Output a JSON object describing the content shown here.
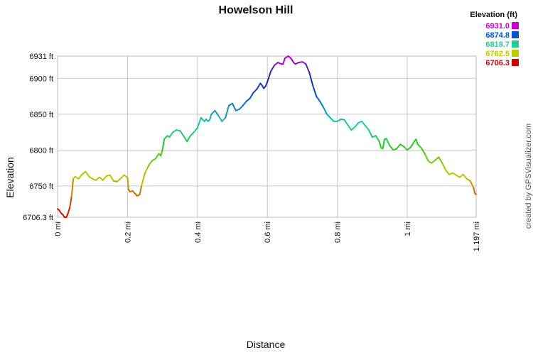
{
  "chart_data": {
    "type": "line",
    "title": "Howelson Hill",
    "xlabel": "Distance",
    "ylabel": "Elevation",
    "xlim": [
      0,
      1.197
    ],
    "ylim": [
      6706.3,
      6931
    ],
    "x_ticks": [
      {
        "v": 0,
        "label": "0 mi"
      },
      {
        "v": 0.2,
        "label": "0.2 mi"
      },
      {
        "v": 0.4,
        "label": "0.4 mi"
      },
      {
        "v": 0.6,
        "label": "0.6 mi"
      },
      {
        "v": 0.8,
        "label": "0.8 mi"
      },
      {
        "v": 1,
        "label": "1 mi"
      },
      {
        "v": 1.197,
        "label": "1.197 mi"
      }
    ],
    "y_ticks": [
      {
        "v": 6706.3,
        "label": "6706.3 ft"
      },
      {
        "v": 6750,
        "label": "6750 ft"
      },
      {
        "v": 6800,
        "label": "6800 ft"
      },
      {
        "v": 6850,
        "label": "6850 ft"
      },
      {
        "v": 6900,
        "label": "6900 ft"
      },
      {
        "v": 6931,
        "label": "6931 ft"
      }
    ],
    "grid": true,
    "legend_placement": "top-right",
    "legend_title": "Elevation (ft)",
    "legend": [
      {
        "label": "6931.0",
        "color": "#cc00cc"
      },
      {
        "label": "6874.8",
        "color": "#0055cc"
      },
      {
        "label": "6818.7",
        "color": "#22cc99"
      },
      {
        "label": "6762.5",
        "color": "#bbcc00"
      },
      {
        "label": "6706.3",
        "color": "#cc0000"
      }
    ],
    "credit": "created by GPSVisualizer.com",
    "x": [
      0,
      0.005,
      0.01,
      0.015,
      0.02,
      0.025,
      0.03,
      0.035,
      0.04,
      0.045,
      0.05,
      0.06,
      0.07,
      0.08,
      0.09,
      0.1,
      0.11,
      0.12,
      0.125,
      0.13,
      0.14,
      0.15,
      0.16,
      0.17,
      0.18,
      0.19,
      0.2,
      0.203,
      0.207,
      0.215,
      0.22,
      0.228,
      0.235,
      0.24,
      0.25,
      0.26,
      0.27,
      0.28,
      0.29,
      0.295,
      0.3,
      0.305,
      0.31,
      0.315,
      0.32,
      0.33,
      0.34,
      0.35,
      0.36,
      0.37,
      0.38,
      0.39,
      0.4,
      0.41,
      0.42,
      0.425,
      0.43,
      0.435,
      0.44,
      0.45,
      0.46,
      0.47,
      0.48,
      0.49,
      0.5,
      0.51,
      0.52,
      0.53,
      0.54,
      0.55,
      0.56,
      0.57,
      0.58,
      0.585,
      0.59,
      0.595,
      0.6,
      0.61,
      0.62,
      0.63,
      0.64,
      0.645,
      0.65,
      0.66,
      0.665,
      0.67,
      0.675,
      0.68,
      0.69,
      0.7,
      0.71,
      0.72,
      0.73,
      0.74,
      0.75,
      0.76,
      0.77,
      0.78,
      0.79,
      0.8,
      0.81,
      0.82,
      0.83,
      0.84,
      0.85,
      0.86,
      0.87,
      0.88,
      0.89,
      0.9,
      0.91,
      0.92,
      0.925,
      0.93,
      0.935,
      0.94,
      0.95,
      0.96,
      0.97,
      0.98,
      0.99,
      1.0,
      1.01,
      1.02,
      1.025,
      1.03,
      1.04,
      1.05,
      1.06,
      1.065,
      1.07,
      1.08,
      1.09,
      1.1,
      1.11,
      1.12,
      1.13,
      1.14,
      1.15,
      1.16,
      1.17,
      1.18,
      1.19,
      1.193,
      1.197
    ],
    "y": [
      6718,
      6716,
      6712,
      6710,
      6706.3,
      6706.3,
      6712,
      6720,
      6735,
      6760,
      6763,
      6760,
      6766,
      6770,
      6763,
      6760,
      6758,
      6762,
      6760,
      6758,
      6764,
      6765,
      6757,
      6756,
      6760,
      6765,
      6762,
      6745,
      6742,
      6743,
      6740,
      6736,
      6738,
      6750,
      6768,
      6778,
      6785,
      6788,
      6795,
      6792,
      6800,
      6815,
      6818,
      6820,
      6818,
      6825,
      6828,
      6827,
      6820,
      6812,
      6820,
      6825,
      6831,
      6845,
      6840,
      6843,
      6840,
      6842,
      6850,
      6855,
      6848,
      6840,
      6845,
      6862,
      6865,
      6855,
      6857,
      6862,
      6868,
      6872,
      6880,
      6885,
      6893,
      6890,
      6886,
      6889,
      6895,
      6910,
      6918,
      6922,
      6920,
      6920,
      6928,
      6931,
      6929,
      6926,
      6922,
      6920,
      6922,
      6923,
      6920,
      6908,
      6890,
      6875,
      6868,
      6860,
      6850,
      6845,
      6840,
      6840,
      6843,
      6842,
      6835,
      6828,
      6832,
      6838,
      6840,
      6834,
      6828,
      6818,
      6820,
      6812,
      6803,
      6802,
      6815,
      6816,
      6806,
      6800,
      6802,
      6808,
      6805,
      6800,
      6804,
      6812,
      6815,
      6808,
      6803,
      6795,
      6785,
      6783,
      6782,
      6786,
      6790,
      6782,
      6772,
      6766,
      6768,
      6765,
      6762,
      6766,
      6760,
      6757,
      6747,
      6740,
      6738
    ]
  }
}
